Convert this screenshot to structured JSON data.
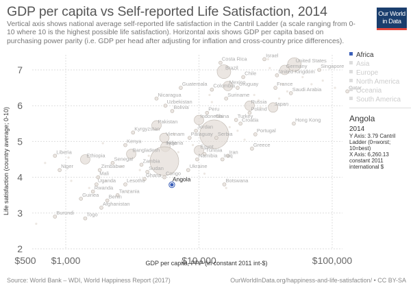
{
  "header": {
    "title": "GDP per capita vs Self-reported Life Satisfaction, 2014",
    "subtitle": "Vertical axis shows national average self-reported life satisfaction in the Cantril Ladder (a scale ranging from 0-10 where 10 is the highest possible life satisfaction). Horizontal axis shows GDP per capita based on purchasing power parity (i.e. GDP per head after adjusting for inflation and cross-country price differences).",
    "logo_line1": "Our World",
    "logo_line2": "in Data"
  },
  "colors": {
    "highlight": "#3b5fb8",
    "faded_point": "#e2dcd5",
    "faded_stroke": "#bdb5ad",
    "logo_bg": "#1a3e6d",
    "logo_accent": "#e2463c"
  },
  "legend": {
    "items": [
      {
        "label": "Africa",
        "active": true
      },
      {
        "label": "Asia",
        "active": false
      },
      {
        "label": "Europe",
        "active": false
      },
      {
        "label": "North America",
        "active": false
      },
      {
        "label": "Oceania",
        "active": false
      },
      {
        "label": "South America",
        "active": false
      }
    ]
  },
  "tooltip": {
    "country": "Angola",
    "year": "2014",
    "y_text": "Y Axis: 3.79 Cantril Ladder (0=worst; 10=best)",
    "x_text": "X Axis: 6,260.13 constant 2011 international $"
  },
  "footer": {
    "source": "Source: World Bank – WDI, World Happiness Report (2017)",
    "url": "OurWorldInData.org/happiness-and-life-satisfaction/ • CC BY-SA"
  },
  "chart_data": {
    "type": "scatter",
    "title": "GDP per capita vs Self-reported Life Satisfaction, 2014",
    "xlabel": "GDP per capita, PPP (in constant 2011 int-$)",
    "ylabel": "Life satisfaction (country average; 0-10)",
    "x_scale": "log",
    "xlim": [
      500,
      120000
    ],
    "ylim": [
      2,
      7.5
    ],
    "x_ticks": [
      500,
      1000,
      10000,
      100000
    ],
    "x_tick_labels": [
      "$500",
      "$1,000",
      "$10,000",
      "$100,000"
    ],
    "y_ticks": [
      2,
      3,
      4,
      5,
      6,
      7
    ],
    "y_tick_labels": [
      "2",
      "3",
      "4",
      "5",
      "6",
      "7"
    ],
    "grid": true,
    "legend_position": "right",
    "highlighted": "Angola",
    "points": [
      {
        "name": "Angola",
        "x": 6260,
        "y": 3.79,
        "size": "small",
        "highlight": true
      },
      {
        "name": "Costa Rica",
        "x": 14500,
        "y": 7.2,
        "size": "small"
      },
      {
        "name": "Brazil",
        "x": 15400,
        "y": 6.95,
        "size": "large"
      },
      {
        "name": "Chile",
        "x": 21500,
        "y": 6.8,
        "size": "small"
      },
      {
        "name": "Mexico",
        "x": 16500,
        "y": 6.55,
        "size": "medium"
      },
      {
        "name": "Uruguay",
        "x": 19500,
        "y": 6.5,
        "size": "small"
      },
      {
        "name": "Colombia",
        "x": 12500,
        "y": 6.45,
        "size": "small"
      },
      {
        "name": "Suriname",
        "x": 16000,
        "y": 6.2,
        "size": "small"
      },
      {
        "name": "Guatemala",
        "x": 7300,
        "y": 6.5,
        "size": "small"
      },
      {
        "name": "Nicaragua",
        "x": 4800,
        "y": 6.2,
        "size": "small"
      },
      {
        "name": "Uzbekistan",
        "x": 5600,
        "y": 6.0,
        "size": "small"
      },
      {
        "name": "Bolivia",
        "x": 6300,
        "y": 5.85,
        "size": "small"
      },
      {
        "name": "Israel",
        "x": 31000,
        "y": 7.3,
        "size": "small"
      },
      {
        "name": "United States",
        "x": 52000,
        "y": 7.15,
        "size": "large"
      },
      {
        "name": "Germany",
        "x": 44000,
        "y": 7.0,
        "size": "medium"
      },
      {
        "name": "United Kingdom",
        "x": 38500,
        "y": 6.85,
        "size": "small"
      },
      {
        "name": "Singapore",
        "x": 80000,
        "y": 7.0,
        "size": "small"
      },
      {
        "name": "Qatar",
        "x": 130000,
        "y": 6.4,
        "size": "small"
      },
      {
        "name": "France",
        "x": 37500,
        "y": 6.5,
        "size": "small"
      },
      {
        "name": "Saudi Arabia",
        "x": 49000,
        "y": 6.35,
        "size": "small"
      },
      {
        "name": "Russia",
        "x": 24000,
        "y": 6.0,
        "size": "medium"
      },
      {
        "name": "Japan",
        "x": 36000,
        "y": 5.95,
        "size": "medium"
      },
      {
        "name": "Poland",
        "x": 24000,
        "y": 5.8,
        "size": "small"
      },
      {
        "name": "Turkey",
        "x": 19000,
        "y": 5.6,
        "size": "small"
      },
      {
        "name": "Croatia",
        "x": 20500,
        "y": 5.5,
        "size": "small"
      },
      {
        "name": "Hong Kong",
        "x": 51500,
        "y": 5.5,
        "size": "small"
      },
      {
        "name": "Portugal",
        "x": 26500,
        "y": 5.2,
        "size": "small"
      },
      {
        "name": "Greece",
        "x": 25000,
        "y": 4.8,
        "size": "small"
      },
      {
        "name": "Peru",
        "x": 11500,
        "y": 5.8,
        "size": "small"
      },
      {
        "name": "Indonesia",
        "x": 10000,
        "y": 5.6,
        "size": "medium"
      },
      {
        "name": "China",
        "x": 13000,
        "y": 5.2,
        "size": "xlarge"
      },
      {
        "name": "Serbia",
        "x": 13500,
        "y": 5.1,
        "size": "small"
      },
      {
        "name": "Jordan",
        "x": 9500,
        "y": 5.3,
        "size": "small"
      },
      {
        "name": "Paraguay",
        "x": 8500,
        "y": 5.1,
        "size": "small"
      },
      {
        "name": "Egypt",
        "x": 10000,
        "y": 4.75,
        "size": "medium"
      },
      {
        "name": "Tunisia",
        "x": 11000,
        "y": 4.65,
        "size": "small"
      },
      {
        "name": "Namibia",
        "x": 9700,
        "y": 4.5,
        "size": "small"
      },
      {
        "name": "Iran",
        "x": 16500,
        "y": 4.6,
        "size": "small"
      },
      {
        "name": "Iraq",
        "x": 15000,
        "y": 4.5,
        "size": "small"
      },
      {
        "name": "Ukraine",
        "x": 8300,
        "y": 4.2,
        "size": "small"
      },
      {
        "name": "Botswana",
        "x": 15500,
        "y": 3.8,
        "size": "small"
      },
      {
        "name": "Pakistan",
        "x": 4800,
        "y": 5.45,
        "size": "medium"
      },
      {
        "name": "Kyrgyzstan",
        "x": 3200,
        "y": 5.25,
        "size": "small"
      },
      {
        "name": "Vietnam",
        "x": 5500,
        "y": 5.1,
        "size": "medium"
      },
      {
        "name": "Nigeria",
        "x": 5600,
        "y": 4.85,
        "size": "medium"
      },
      {
        "name": "India",
        "x": 5500,
        "y": 4.45,
        "size": "xlarge"
      },
      {
        "name": "Kenya",
        "x": 2800,
        "y": 4.9,
        "size": "small"
      },
      {
        "name": "Bangladesh",
        "x": 3100,
        "y": 4.65,
        "size": "medium"
      },
      {
        "name": "Zambia",
        "x": 3700,
        "y": 4.35,
        "size": "small"
      },
      {
        "name": "Sudan",
        "x": 4100,
        "y": 4.15,
        "size": "small"
      },
      {
        "name": "Congo",
        "x": 5500,
        "y": 4.0,
        "size": "small"
      },
      {
        "name": "Ghana",
        "x": 3900,
        "y": 3.95,
        "size": "small"
      },
      {
        "name": "Lesotho",
        "x": 2800,
        "y": 3.8,
        "size": "small"
      },
      {
        "name": "Senegal",
        "x": 2250,
        "y": 4.4,
        "size": "small"
      },
      {
        "name": "Zimbabwe",
        "x": 1800,
        "y": 4.2,
        "size": "small"
      },
      {
        "name": "Mali",
        "x": 1750,
        "y": 4.0,
        "size": "small"
      },
      {
        "name": "Uganda",
        "x": 1700,
        "y": 3.8,
        "size": "small"
      },
      {
        "name": "Rwanda",
        "x": 1600,
        "y": 3.6,
        "size": "small"
      },
      {
        "name": "Tanzania",
        "x": 2450,
        "y": 3.5,
        "size": "small"
      },
      {
        "name": "Benin",
        "x": 2050,
        "y": 3.35,
        "size": "small"
      },
      {
        "name": "Afghanistan",
        "x": 1850,
        "y": 3.15,
        "size": "small"
      },
      {
        "name": "Guinea",
        "x": 1300,
        "y": 3.4,
        "size": "small"
      },
      {
        "name": "Ethiopia",
        "x": 1400,
        "y": 4.5,
        "size": "medium"
      },
      {
        "name": "Liberia",
        "x": 830,
        "y": 4.6,
        "size": "small"
      },
      {
        "name": "Niger",
        "x": 900,
        "y": 4.2,
        "size": "small"
      },
      {
        "name": "Burundi",
        "x": 830,
        "y": 2.9,
        "size": "small"
      },
      {
        "name": "Togo",
        "x": 1400,
        "y": 2.85,
        "size": "small"
      }
    ]
  }
}
